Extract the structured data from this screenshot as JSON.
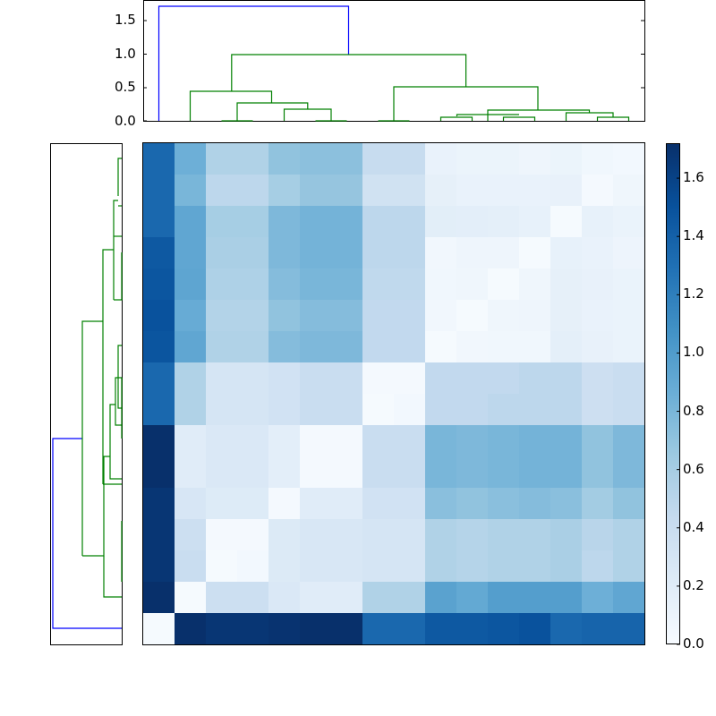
{
  "chart_data": {
    "type": "heatmap",
    "title": "",
    "description": "Clustered heatmap (distance matrix) with top and left dendrograms and a Blues colorbar",
    "rows": 16,
    "cols": 16,
    "colormap": "Blues",
    "vmin": 0.0,
    "vmax": 1.72,
    "matrix": [
      [
        1.35,
        0.85,
        0.55,
        0.55,
        0.7,
        0.72,
        0.72,
        0.42,
        0.42,
        0.12,
        0.1,
        0.1,
        0.08,
        0.1,
        0.06,
        0.04
      ],
      [
        1.35,
        0.8,
        0.48,
        0.48,
        0.6,
        0.68,
        0.68,
        0.34,
        0.34,
        0.15,
        0.12,
        0.12,
        0.12,
        0.13,
        0.03,
        0.07
      ],
      [
        1.35,
        0.92,
        0.6,
        0.6,
        0.78,
        0.82,
        0.82,
        0.48,
        0.48,
        0.18,
        0.17,
        0.16,
        0.14,
        0.02,
        0.14,
        0.11
      ],
      [
        1.45,
        0.92,
        0.58,
        0.58,
        0.78,
        0.82,
        0.82,
        0.48,
        0.48,
        0.05,
        0.08,
        0.08,
        0.02,
        0.14,
        0.12,
        0.09
      ],
      [
        1.47,
        0.93,
        0.56,
        0.56,
        0.75,
        0.8,
        0.8,
        0.46,
        0.46,
        0.06,
        0.07,
        0.02,
        0.07,
        0.15,
        0.13,
        0.11
      ],
      [
        1.5,
        0.88,
        0.53,
        0.53,
        0.7,
        0.75,
        0.75,
        0.45,
        0.45,
        0.05,
        0.02,
        0.07,
        0.08,
        0.15,
        0.12,
        0.11
      ],
      [
        1.48,
        0.92,
        0.55,
        0.55,
        0.75,
        0.78,
        0.78,
        0.45,
        0.45,
        0.02,
        0.05,
        0.06,
        0.06,
        0.16,
        0.13,
        0.11
      ],
      [
        1.35,
        0.55,
        0.3,
        0.3,
        0.33,
        0.4,
        0.4,
        0.03,
        0.03,
        0.45,
        0.45,
        0.45,
        0.48,
        0.48,
        0.37,
        0.4
      ],
      [
        1.35,
        0.55,
        0.3,
        0.3,
        0.33,
        0.4,
        0.4,
        0.02,
        0.04,
        0.45,
        0.45,
        0.48,
        0.48,
        0.48,
        0.37,
        0.4
      ],
      [
        1.72,
        0.2,
        0.25,
        0.25,
        0.17,
        0.03,
        0.03,
        0.4,
        0.4,
        0.8,
        0.78,
        0.8,
        0.82,
        0.82,
        0.7,
        0.78
      ],
      [
        1.72,
        0.2,
        0.25,
        0.25,
        0.17,
        0.03,
        0.03,
        0.4,
        0.4,
        0.8,
        0.78,
        0.8,
        0.82,
        0.82,
        0.7,
        0.78
      ],
      [
        1.68,
        0.28,
        0.22,
        0.22,
        0.03,
        0.2,
        0.2,
        0.33,
        0.33,
        0.73,
        0.7,
        0.73,
        0.75,
        0.73,
        0.62,
        0.7
      ],
      [
        1.68,
        0.38,
        0.03,
        0.03,
        0.23,
        0.27,
        0.27,
        0.3,
        0.3,
        0.55,
        0.52,
        0.55,
        0.55,
        0.58,
        0.5,
        0.55
      ],
      [
        1.68,
        0.4,
        0.02,
        0.04,
        0.23,
        0.27,
        0.27,
        0.3,
        0.3,
        0.55,
        0.52,
        0.55,
        0.55,
        0.58,
        0.48,
        0.55
      ],
      [
        1.72,
        0.02,
        0.38,
        0.38,
        0.25,
        0.2,
        0.2,
        0.55,
        0.55,
        0.95,
        0.9,
        0.98,
        0.98,
        0.98,
        0.85,
        0.92
      ],
      [
        0.02,
        1.72,
        1.68,
        1.68,
        1.7,
        1.72,
        1.72,
        1.35,
        1.35,
        1.45,
        1.45,
        1.47,
        1.5,
        1.35,
        1.38,
        1.38
      ]
    ],
    "colorbar": {
      "ticks": [
        0.0,
        0.2,
        0.4,
        0.6,
        0.8,
        1.0,
        1.2,
        1.4,
        1.6
      ],
      "tick_labels": [
        "0.0",
        "0.2",
        "0.4",
        "0.6",
        "0.8",
        "1.0",
        "1.2",
        "1.4",
        "1.6"
      ],
      "range": [
        0.0,
        1.72
      ]
    },
    "top_dendrogram": {
      "ylim": [
        0.0,
        1.8
      ],
      "yticks": [
        0.0,
        0.5,
        1.0,
        1.5
      ],
      "ytick_labels": [
        "0.0",
        "0.5",
        "1.0",
        "1.5"
      ],
      "root_height": 1.72,
      "link_colors": {
        "above_threshold": "#0000ff",
        "cluster": "#008000"
      }
    },
    "left_dendrogram": {
      "root_height": 1.72,
      "link_colors": {
        "above_threshold": "#0000ff",
        "cluster": "#008000"
      }
    },
    "xlabel": "",
    "ylabel": "",
    "grid": false
  },
  "colors": {
    "dendro_blue": "#0000ff",
    "dendro_green": "#008000",
    "cmap_low": "#f7fbff",
    "cmap_high": "#08306b"
  }
}
